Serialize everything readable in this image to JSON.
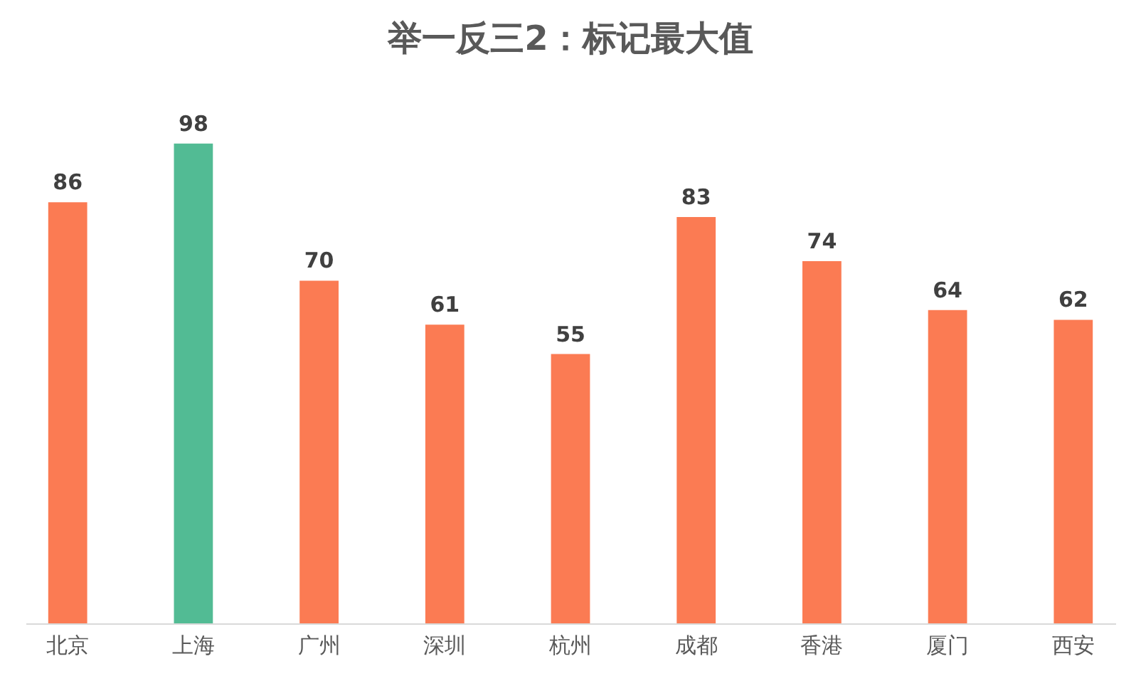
{
  "chart_data": {
    "type": "bar",
    "title": "举一反三2：标记最大值",
    "categories": [
      "北京",
      "上海",
      "广州",
      "深圳",
      "杭州",
      "成都",
      "香港",
      "厦门",
      "西安"
    ],
    "values": [
      86,
      98,
      70,
      61,
      55,
      83,
      74,
      64,
      62
    ],
    "colors": [
      "#fb7b53",
      "#52bb94",
      "#fb7b53",
      "#fb7b53",
      "#fb7b53",
      "#fb7b53",
      "#fb7b53",
      "#fb7b53",
      "#fb7b53"
    ],
    "data_labels": true
  }
}
